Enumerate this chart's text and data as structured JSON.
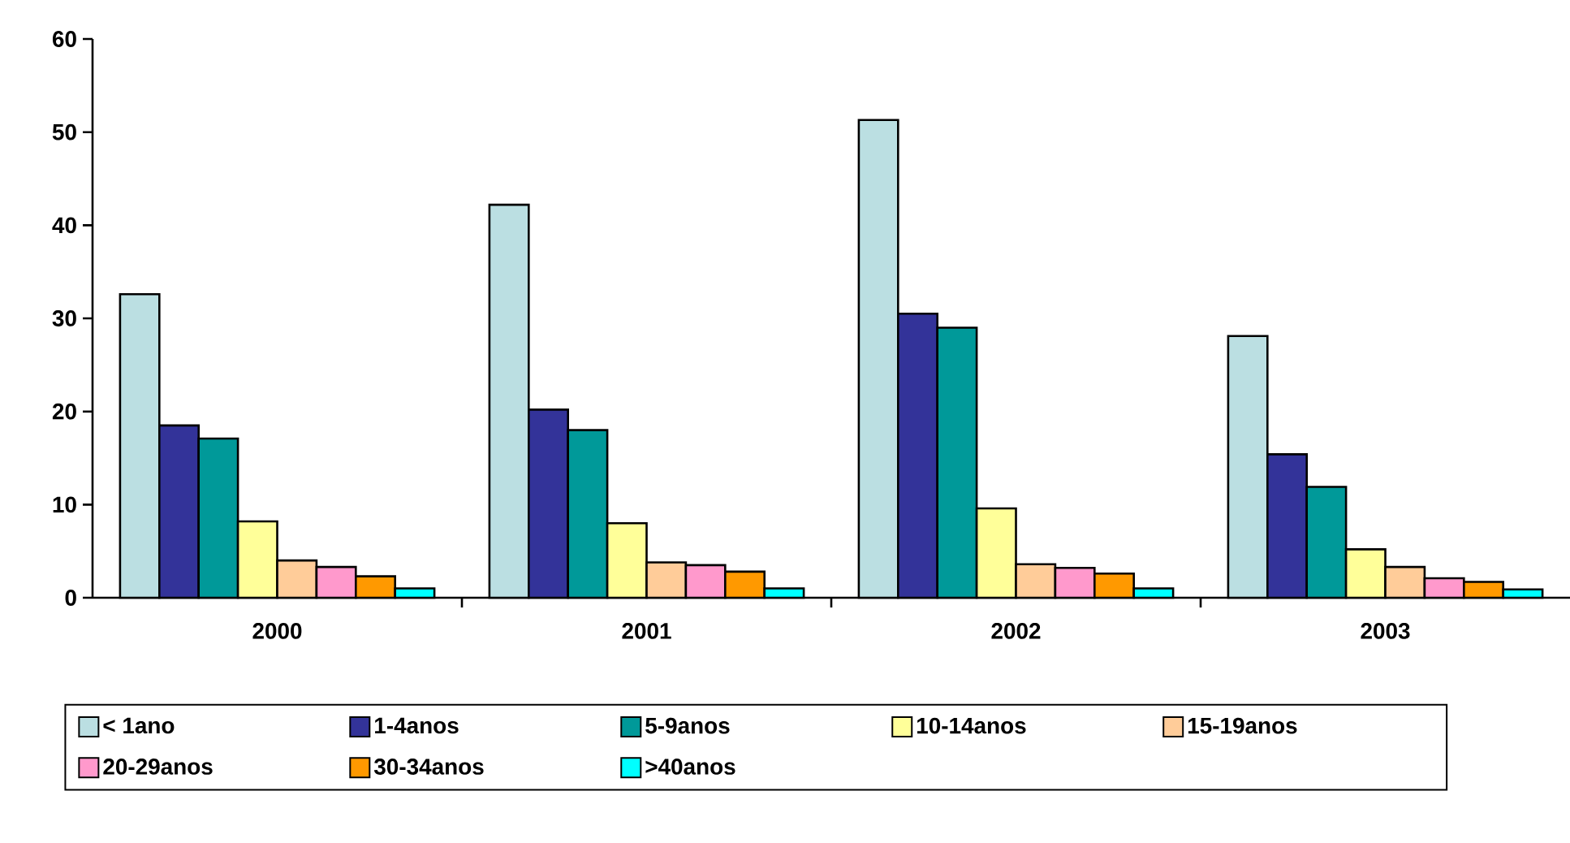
{
  "chart_data": {
    "type": "bar",
    "categories": [
      "2000",
      "2001",
      "2002",
      "2003"
    ],
    "ylim": [
      0,
      60
    ],
    "yticks": [
      0,
      10,
      20,
      30,
      40,
      50,
      60
    ],
    "grid": false,
    "legend": "bottom",
    "series": [
      {
        "name": "< 1ano",
        "color": "#bbdfe2",
        "values": [
          32.6,
          42.2,
          51.3,
          28.1
        ]
      },
      {
        "name": "1-4anos",
        "color": "#333399",
        "values": [
          18.5,
          20.2,
          30.5,
          15.4
        ]
      },
      {
        "name": "5-9anos",
        "color": "#009999",
        "values": [
          17.1,
          18.0,
          29.0,
          11.9
        ]
      },
      {
        "name": "10-14anos",
        "color": "#ffff99",
        "values": [
          8.2,
          8.0,
          9.6,
          5.2
        ]
      },
      {
        "name": "15-19anos",
        "color": "#ffcc99",
        "values": [
          4.0,
          3.8,
          3.6,
          3.3
        ]
      },
      {
        "name": "20-29anos",
        "color": "#ff99cc",
        "values": [
          3.3,
          3.5,
          3.2,
          2.1
        ]
      },
      {
        "name": "30-34anos",
        "color": "#ff9900",
        "values": [
          2.3,
          2.8,
          2.6,
          1.7
        ]
      },
      {
        "name": ">40anos",
        "color": "#00ffff",
        "values": [
          1.0,
          1.0,
          1.0,
          0.9
        ]
      }
    ]
  }
}
